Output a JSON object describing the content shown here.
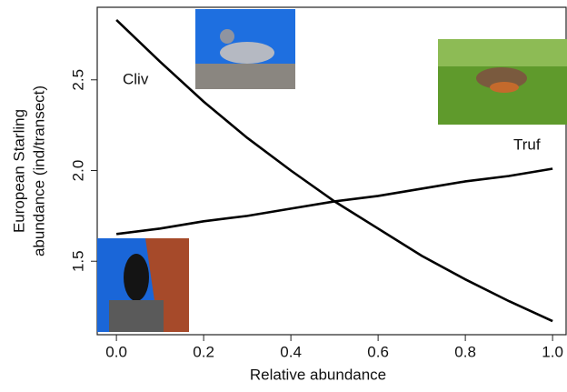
{
  "chart_data": {
    "type": "line",
    "xlabel": "Relative abundance",
    "ylabel": [
      "European Starling",
      "abundance (ind/transect)"
    ],
    "x": [
      0,
      0.1,
      0.2,
      0.3,
      0.4,
      0.5,
      0.6,
      0.7,
      0.8,
      0.9,
      1
    ],
    "series": [
      {
        "name": "Cliv",
        "color": "#000000",
        "values": [
          2.83,
          2.6,
          2.38,
          2.18,
          2.0,
          1.83,
          1.68,
          1.53,
          1.4,
          1.28,
          1.17
        ]
      },
      {
        "name": "Truf",
        "color": "#000000",
        "values": [
          1.65,
          1.68,
          1.72,
          1.75,
          1.79,
          1.83,
          1.86,
          1.9,
          1.94,
          1.97,
          2.01
        ]
      }
    ],
    "xlim": [
      -0.044,
      1.031
    ],
    "ylim": [
      1.095,
      2.9
    ],
    "xticks": [
      {
        "value": 0,
        "label": "0.0"
      },
      0.2,
      0.4,
      0.6,
      0.8,
      {
        "value": 1,
        "label": "1.0"
      }
    ],
    "yticks": [
      1.5,
      {
        "value": 2,
        "label": "2.0"
      },
      2.5
    ],
    "grid": false
  }
}
